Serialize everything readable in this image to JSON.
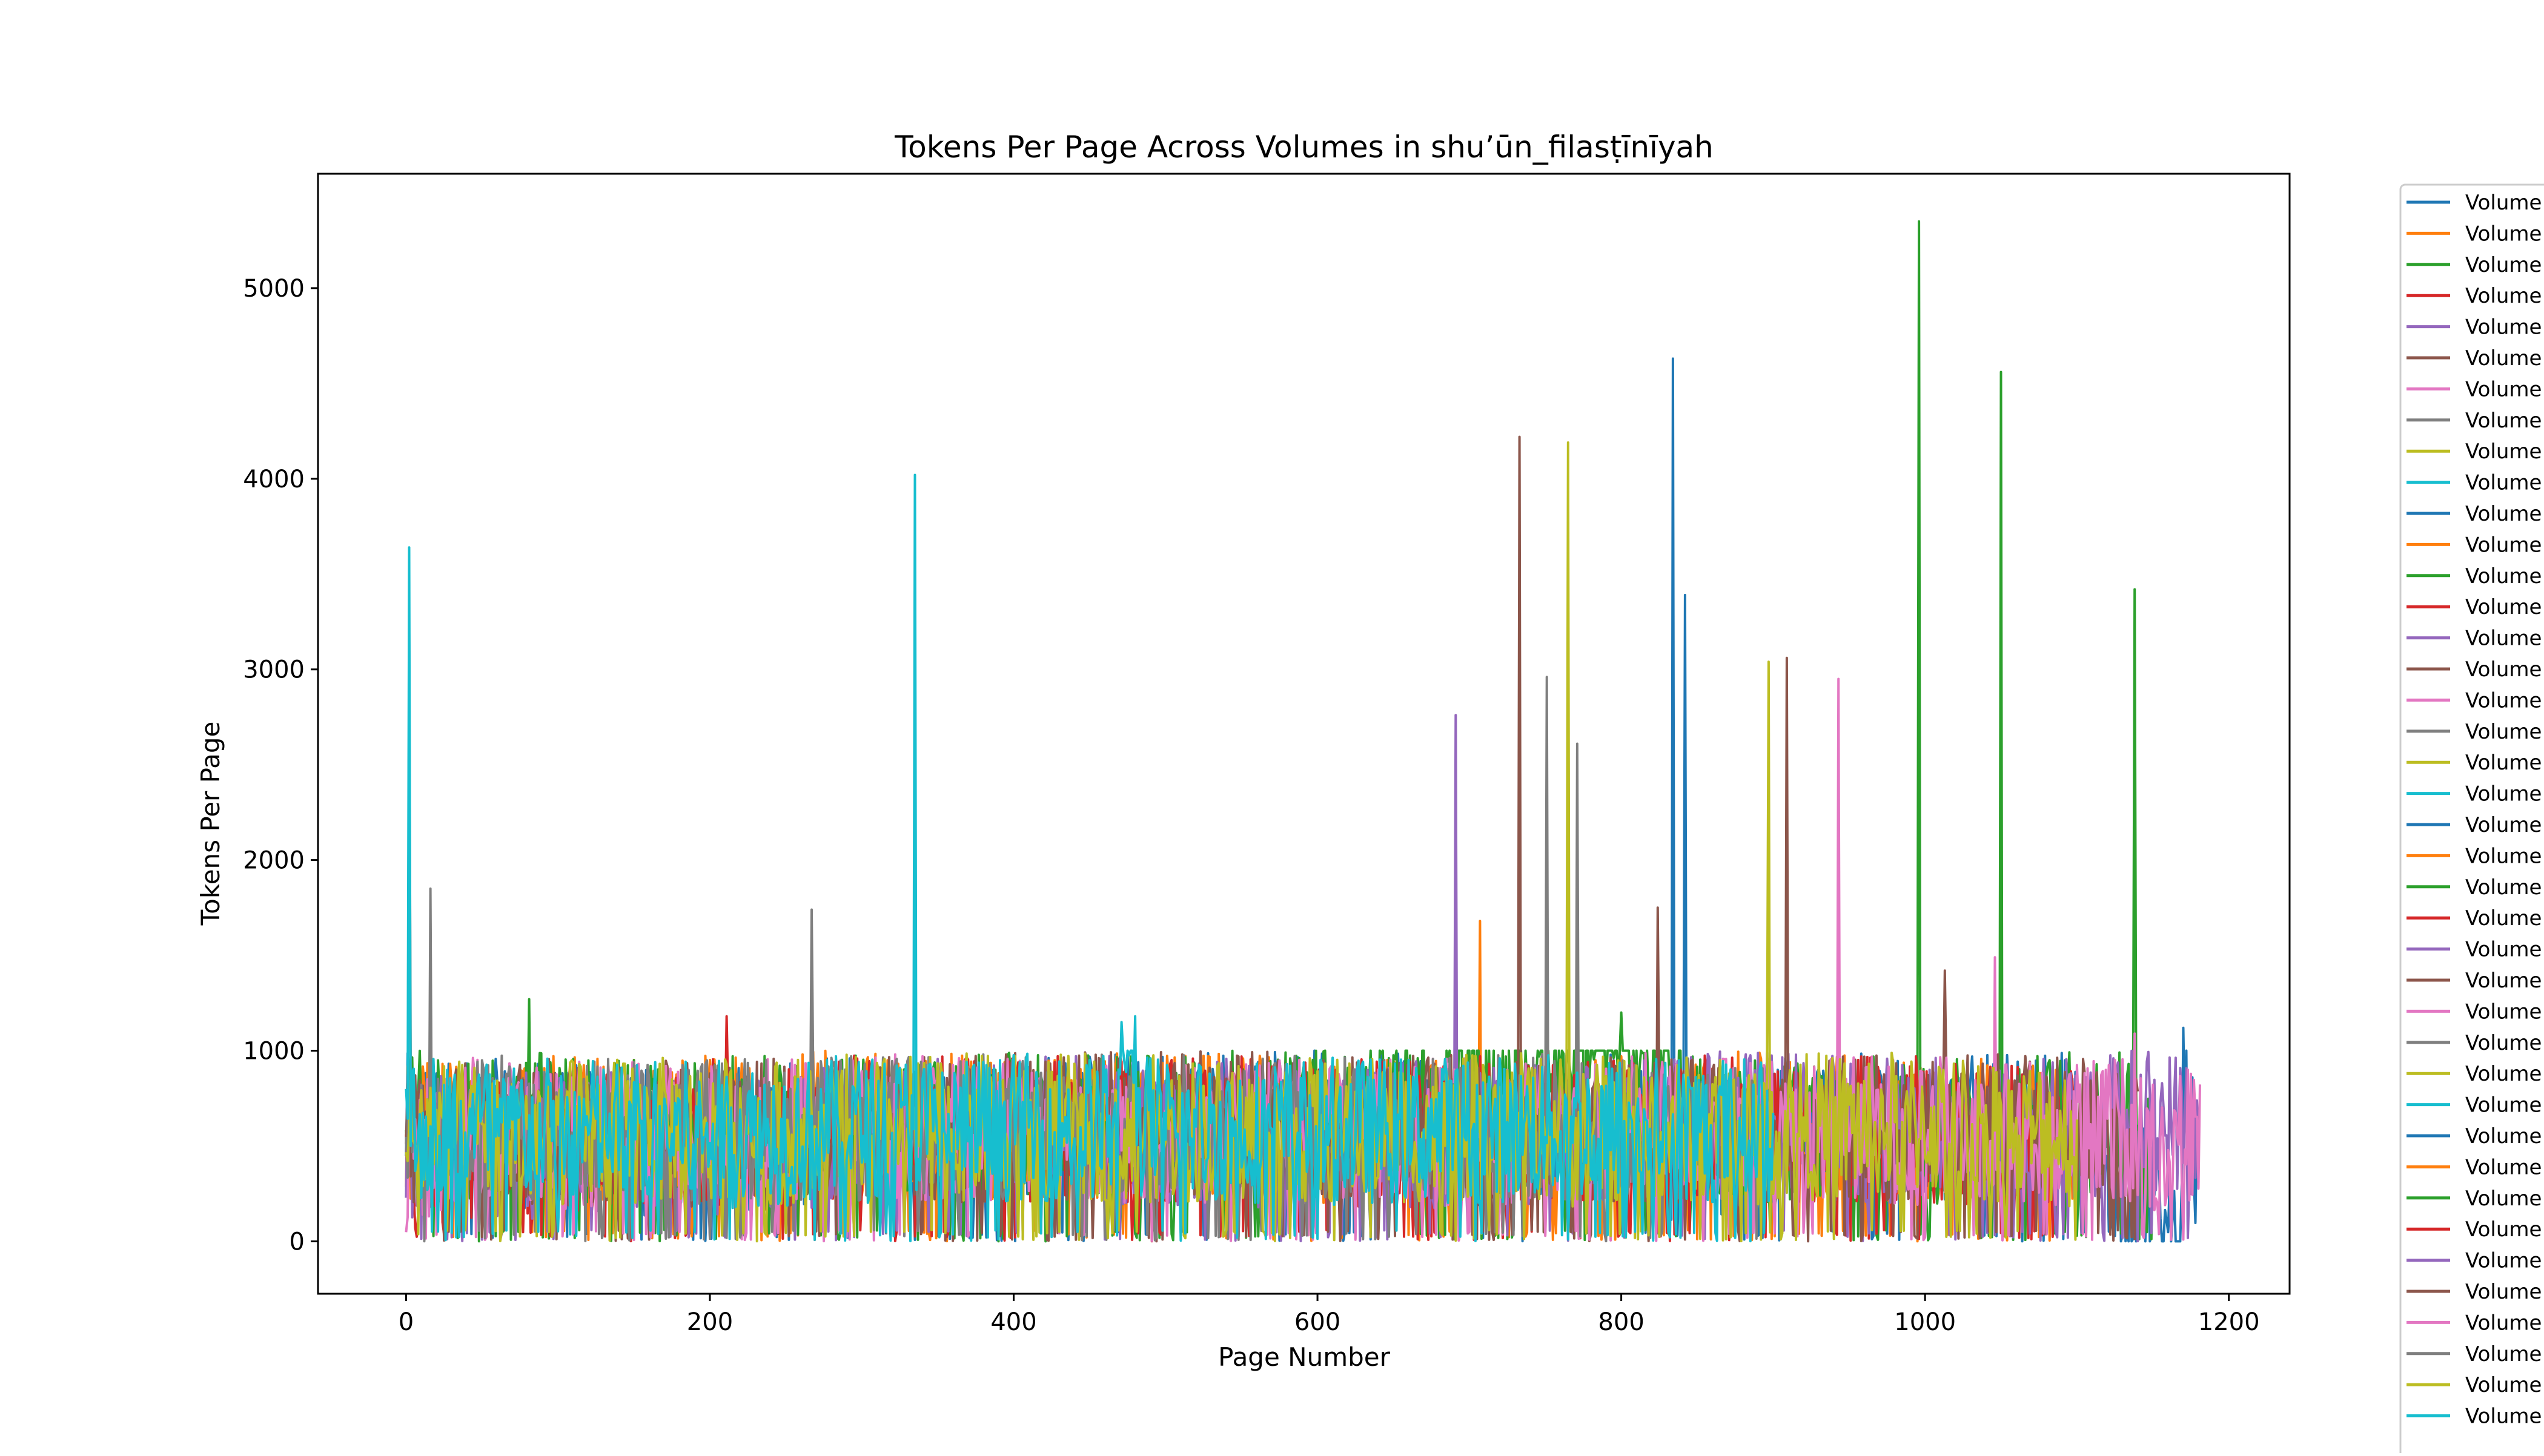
{
  "chart_data": {
    "type": "line",
    "title": "Tokens Per Page Across Volumes in shu’ūn_filasṭīnīyah",
    "xlabel": "Page Number",
    "ylabel": "Tokens Per Page",
    "xlim": [
      -58,
      1240
    ],
    "ylim": [
      -275,
      5600
    ],
    "xticks": [
      0,
      200,
      400,
      600,
      800,
      1000,
      1200
    ],
    "yticks": [
      0,
      1000,
      2000,
      3000,
      4000,
      5000
    ],
    "grid": false,
    "legend_placement": "right, outside plot area (clipped)",
    "legend_entries": [
      "Volume",
      "Volume",
      "Volume",
      "Volume",
      "Volume",
      "Volume",
      "Volume",
      "Volume",
      "Volume",
      "Volume",
      "Volume",
      "Volume",
      "Volume",
      "Volume",
      "Volume",
      "Volume",
      "Volume",
      "Volume",
      "Volume",
      "Volume",
      "Volume",
      "Volume",
      "Volume",
      "Volume",
      "Volume",
      "Volume",
      "Volume",
      "Volume",
      "Volume",
      "Volume",
      "Volume",
      "Volume",
      "Volume",
      "Volume",
      "Volume",
      "Volume",
      "Volume",
      "Volume",
      "Volume",
      "Volume"
    ],
    "colors": [
      "#1f77b4",
      "#ff7f0e",
      "#2ca02c",
      "#d62728",
      "#9467bd",
      "#8c564b",
      "#e377c2",
      "#7f7f7f",
      "#bcbd22",
      "#17becf"
    ],
    "series_note": "",
    "series": [
      {
        "color": "#1f77b4",
        "x": [
          0,
          150,
          300,
          450,
          600,
          700,
          800,
          833,
          834,
          835,
          841,
          842,
          843,
          900,
          1000,
          1100,
          1169,
          1170,
          1172,
          1180
        ],
        "y": [
          600,
          520,
          580,
          610,
          640,
          560,
          600,
          500,
          4630,
          400,
          500,
          3390,
          450,
          620,
          580,
          600,
          0,
          1120,
          700,
          300
        ]
      },
      {
        "color": "#ff7f0e",
        "x": [
          0,
          100,
          200,
          300,
          400,
          500,
          600,
          700,
          706,
          707,
          708,
          800,
          900,
          1000,
          1100
        ],
        "y": [
          550,
          600,
          590,
          620,
          580,
          610,
          570,
          580,
          600,
          1680,
          500,
          620,
          600,
          590,
          560
        ]
      },
      {
        "color": "#2ca02c",
        "x": [
          0,
          80,
          81,
          82,
          200,
          400,
          600,
          800,
          850,
          900,
          995,
          996,
          997,
          1049,
          1050,
          1051,
          1137,
          1138,
          1139,
          1150
        ],
        "y": [
          620,
          600,
          1270,
          600,
          580,
          600,
          620,
          1200,
          580,
          560,
          600,
          5350,
          560,
          590,
          4560,
          600,
          620,
          3420,
          560,
          500
        ]
      },
      {
        "color": "#d62728",
        "x": [
          0,
          100,
          200,
          210,
          211,
          212,
          300,
          400,
          500,
          600,
          700,
          800,
          900,
          1000,
          1100
        ],
        "y": [
          450,
          500,
          560,
          580,
          1180,
          520,
          600,
          580,
          600,
          560,
          580,
          600,
          590,
          580,
          560
        ]
      },
      {
        "color": "#9467bd",
        "x": [
          0,
          200,
          400,
          600,
          690,
          691,
          692,
          800,
          900,
          1000,
          1100,
          1150,
          1180
        ],
        "y": [
          500,
          520,
          600,
          560,
          560,
          2760,
          520,
          600,
          620,
          580,
          600,
          640,
          600
        ]
      },
      {
        "color": "#8c564b",
        "x": [
          0,
          200,
          400,
          600,
          730,
          732,
          733,
          734,
          800,
          823,
          824,
          825,
          908,
          909,
          910,
          1012,
          1013,
          1014,
          1100,
          1140
        ],
        "y": [
          580,
          560,
          600,
          620,
          600,
          600,
          4220,
          600,
          580,
          600,
          1750,
          560,
          600,
          3060,
          580,
          600,
          1420,
          600,
          580,
          560
        ]
      },
      {
        "color": "#e377c2",
        "x": [
          0,
          40,
          100,
          200,
          260,
          300,
          400,
          600,
          800,
          900,
          942,
          943,
          944,
          1000,
          1045,
          1046,
          1047,
          1100,
          1137,
          1138,
          1139,
          1150,
          1181
        ],
        "y": [
          450,
          600,
          560,
          540,
          580,
          600,
          590,
          560,
          600,
          580,
          600,
          2950,
          600,
          580,
          600,
          1490,
          580,
          560,
          600,
          1090,
          560,
          520,
          560
        ]
      },
      {
        "color": "#7f7f7f",
        "x": [
          0,
          1,
          2,
          3,
          15,
          16,
          17,
          100,
          200,
          266,
          267,
          268,
          400,
          600,
          750,
          751,
          752,
          770,
          771,
          772,
          900
        ],
        "y": [
          600,
          600,
          3190,
          600,
          600,
          1850,
          580,
          600,
          580,
          600,
          1740,
          580,
          600,
          590,
          600,
          2960,
          580,
          600,
          2610,
          580,
          560
        ]
      },
      {
        "color": "#bcbd22",
        "x": [
          0,
          200,
          400,
          600,
          763,
          764,
          765,
          766,
          800,
          896,
          897,
          898,
          1000,
          1100
        ],
        "y": [
          560,
          580,
          600,
          580,
          600,
          600,
          4190,
          560,
          600,
          580,
          3040,
          600,
          620,
          560
        ]
      },
      {
        "color": "#17becf",
        "x": [
          0,
          1,
          2,
          3,
          200,
          333,
          334,
          335,
          336,
          470,
          471,
          480,
          481,
          600,
          800,
          900
        ],
        "y": [
          600,
          620,
          3640,
          600,
          560,
          600,
          620,
          4020,
          600,
          600,
          1150,
          1180,
          600,
          580,
          600,
          580
        ]
      }
    ]
  },
  "legend": {
    "items": [
      "Volume",
      "Volume",
      "Volume",
      "Volume",
      "Volume",
      "Volume",
      "Volume",
      "Volume",
      "Volume",
      "Volume",
      "Volume",
      "Volume",
      "Volume",
      "Volume",
      "Volume",
      "Volume",
      "Volume",
      "Volume",
      "Volume",
      "Volume",
      "Volume",
      "Volume",
      "Volume",
      "Volume",
      "Volume",
      "Volume",
      "Volume",
      "Volume",
      "Volume",
      "Volume",
      "Volume",
      "Volume",
      "Volume",
      "Volume",
      "Volume",
      "Volume",
      "Volume",
      "Volume",
      "Volume",
      "Volume"
    ]
  }
}
